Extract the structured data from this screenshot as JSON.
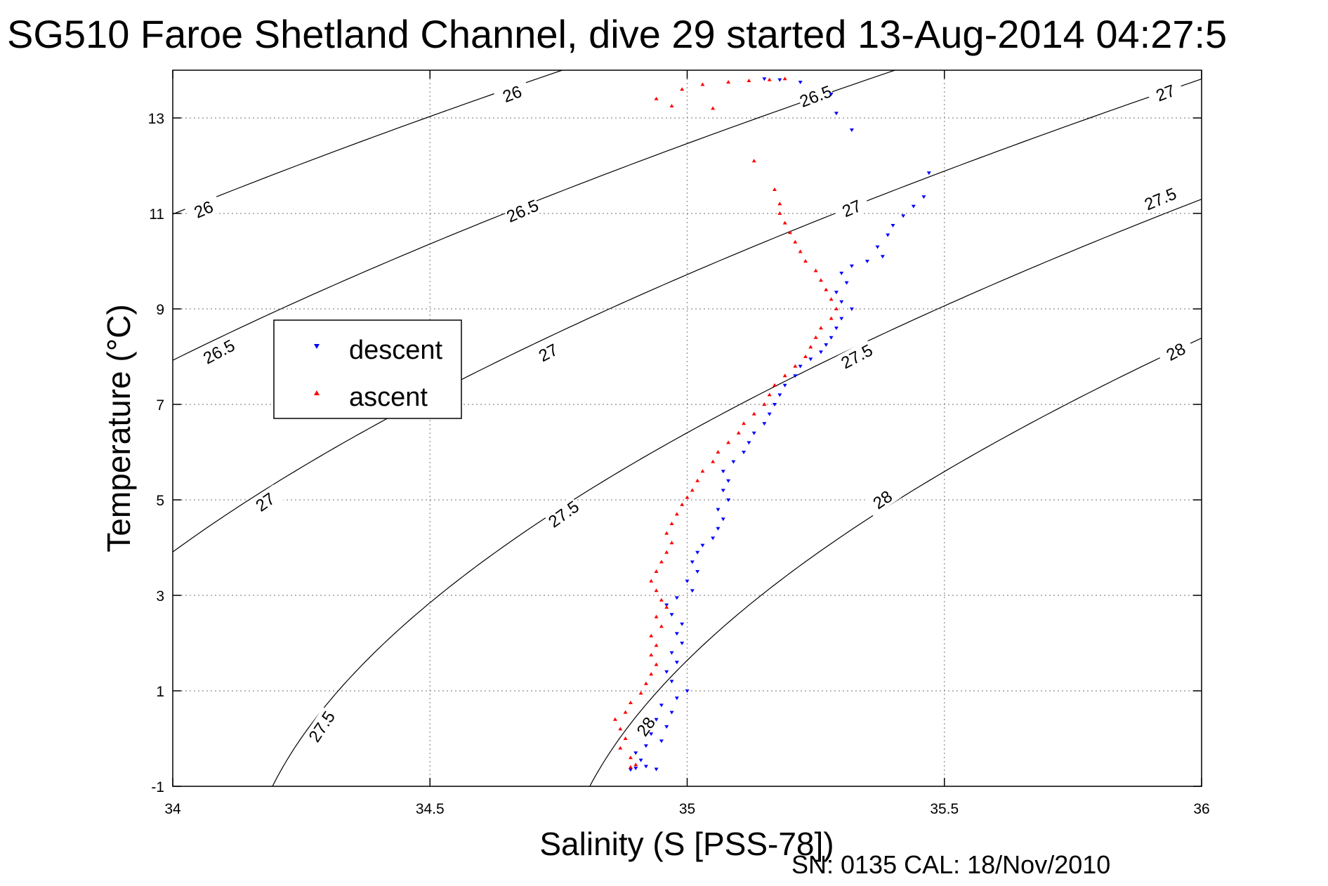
{
  "footer": "SN: 0135  CAL: 18/Nov/2010",
  "colors": {
    "descent": "#0000ff",
    "ascent": "#ff0000",
    "contour": "#000000",
    "grid": "#8c8c8c"
  },
  "chart_data": {
    "type": "scatter",
    "title": "SG510 Faroe Shetland Channel, dive 29 started 13-Aug-2014 04:27:5",
    "xlabel": "Salinity (S [PSS-78])",
    "ylabel": "Temperature (°C)",
    "xlim": [
      34,
      36
    ],
    "ylim": [
      -1,
      14
    ],
    "xticks": [
      "34",
      "34.5",
      "35",
      "35.5",
      "36"
    ],
    "yticks": [
      "-1",
      "1",
      "3",
      "5",
      "7",
      "9",
      "11",
      "13"
    ],
    "grid": true,
    "legend_position": "left",
    "legend": [
      {
        "label": "descent",
        "marker": "down-triangle",
        "color": "#0000ff"
      },
      {
        "label": "ascent",
        "marker": "up-triangle",
        "color": "#ff0000"
      }
    ],
    "contours": [
      {
        "level": 26.0,
        "label": "26",
        "labels_at": [
          [
            34.06,
            11.08
          ],
          [
            34.66,
            13.5
          ]
        ]
      },
      {
        "level": 26.5,
        "label": "26.5",
        "labels_at": [
          [
            34.09,
            8.1
          ],
          [
            34.68,
            11.05
          ],
          [
            35.25,
            13.45
          ]
        ]
      },
      {
        "level": 27.0,
        "label": "27",
        "labels_at": [
          [
            34.18,
            4.95
          ],
          [
            34.73,
            8.08
          ],
          [
            35.32,
            11.1
          ],
          [
            35.93,
            13.52
          ]
        ]
      },
      {
        "level": 27.5,
        "label": "27.5",
        "labels_at": [
          [
            34.29,
            0.25
          ],
          [
            34.76,
            4.7
          ],
          [
            35.33,
            8.0
          ],
          [
            35.92,
            11.3
          ]
        ]
      },
      {
        "level": 28.0,
        "label": "28",
        "labels_at": [
          [
            34.92,
            0.25
          ],
          [
            35.38,
            5.0
          ],
          [
            35.95,
            8.1
          ]
        ]
      }
    ],
    "series": [
      {
        "name": "descent",
        "points": [
          [
            34.89,
            -0.65
          ],
          [
            34.9,
            -0.62
          ],
          [
            34.92,
            -0.58
          ],
          [
            34.94,
            -0.64
          ],
          [
            34.91,
            -0.45
          ],
          [
            34.9,
            -0.3
          ],
          [
            34.92,
            -0.15
          ],
          [
            34.95,
            -0.05
          ],
          [
            34.93,
            0.1
          ],
          [
            34.96,
            0.25
          ],
          [
            34.94,
            0.4
          ],
          [
            34.97,
            0.55
          ],
          [
            34.95,
            0.7
          ],
          [
            34.98,
            0.85
          ],
          [
            35.0,
            1.0
          ],
          [
            34.97,
            1.2
          ],
          [
            34.96,
            1.4
          ],
          [
            34.98,
            1.6
          ],
          [
            34.97,
            1.8
          ],
          [
            34.99,
            2.0
          ],
          [
            34.98,
            2.2
          ],
          [
            34.99,
            2.4
          ],
          [
            34.97,
            2.6
          ],
          [
            34.96,
            2.8
          ],
          [
            34.98,
            2.95
          ],
          [
            35.01,
            3.1
          ],
          [
            35.0,
            3.3
          ],
          [
            35.02,
            3.5
          ],
          [
            35.01,
            3.7
          ],
          [
            35.02,
            3.9
          ],
          [
            35.03,
            4.05
          ],
          [
            35.05,
            4.2
          ],
          [
            35.06,
            4.4
          ],
          [
            35.07,
            4.6
          ],
          [
            35.06,
            4.8
          ],
          [
            35.08,
            5.0
          ],
          [
            35.07,
            5.2
          ],
          [
            35.08,
            5.4
          ],
          [
            35.07,
            5.6
          ],
          [
            35.09,
            5.8
          ],
          [
            35.11,
            6.0
          ],
          [
            35.12,
            6.2
          ],
          [
            35.13,
            6.4
          ],
          [
            35.15,
            6.6
          ],
          [
            35.16,
            6.8
          ],
          [
            35.17,
            7.0
          ],
          [
            35.18,
            7.2
          ],
          [
            35.19,
            7.4
          ],
          [
            35.21,
            7.6
          ],
          [
            35.22,
            7.8
          ],
          [
            35.24,
            7.95
          ],
          [
            35.26,
            8.1
          ],
          [
            35.27,
            8.25
          ],
          [
            35.28,
            8.4
          ],
          [
            35.29,
            8.6
          ],
          [
            35.3,
            8.8
          ],
          [
            35.32,
            9.0
          ],
          [
            35.3,
            9.15
          ],
          [
            35.29,
            9.35
          ],
          [
            35.31,
            9.55
          ],
          [
            35.3,
            9.75
          ],
          [
            35.32,
            9.9
          ],
          [
            35.35,
            10.0
          ],
          [
            35.38,
            10.1
          ],
          [
            35.37,
            10.3
          ],
          [
            35.39,
            10.55
          ],
          [
            35.4,
            10.75
          ],
          [
            35.42,
            10.95
          ],
          [
            35.44,
            11.15
          ],
          [
            35.46,
            11.35
          ],
          [
            35.47,
            11.85
          ],
          [
            35.32,
            12.75
          ],
          [
            35.29,
            13.1
          ],
          [
            35.28,
            13.5
          ],
          [
            35.22,
            13.75
          ],
          [
            35.18,
            13.8
          ],
          [
            35.15,
            13.82
          ]
        ]
      },
      {
        "name": "ascent",
        "points": [
          [
            34.89,
            -0.6
          ],
          [
            34.9,
            -0.55
          ],
          [
            34.89,
            -0.4
          ],
          [
            34.87,
            -0.2
          ],
          [
            34.88,
            0.0
          ],
          [
            34.87,
            0.2
          ],
          [
            34.86,
            0.4
          ],
          [
            34.88,
            0.55
          ],
          [
            34.89,
            0.75
          ],
          [
            34.91,
            0.95
          ],
          [
            34.92,
            1.15
          ],
          [
            34.93,
            1.35
          ],
          [
            34.94,
            1.55
          ],
          [
            34.93,
            1.75
          ],
          [
            34.94,
            1.95
          ],
          [
            34.93,
            2.15
          ],
          [
            34.95,
            2.35
          ],
          [
            34.94,
            2.55
          ],
          [
            34.96,
            2.75
          ],
          [
            34.95,
            2.9
          ],
          [
            34.94,
            3.1
          ],
          [
            34.93,
            3.3
          ],
          [
            34.94,
            3.5
          ],
          [
            34.95,
            3.7
          ],
          [
            34.96,
            3.9
          ],
          [
            34.97,
            4.1
          ],
          [
            34.96,
            4.3
          ],
          [
            34.97,
            4.5
          ],
          [
            34.98,
            4.7
          ],
          [
            34.99,
            4.9
          ],
          [
            35.0,
            5.05
          ],
          [
            35.01,
            5.2
          ],
          [
            35.02,
            5.4
          ],
          [
            35.03,
            5.6
          ],
          [
            35.05,
            5.8
          ],
          [
            35.06,
            6.0
          ],
          [
            35.08,
            6.2
          ],
          [
            35.1,
            6.4
          ],
          [
            35.11,
            6.6
          ],
          [
            35.13,
            6.8
          ],
          [
            35.15,
            7.0
          ],
          [
            35.16,
            7.2
          ],
          [
            35.17,
            7.4
          ],
          [
            35.19,
            7.6
          ],
          [
            35.21,
            7.8
          ],
          [
            35.23,
            8.0
          ],
          [
            35.24,
            8.2
          ],
          [
            35.25,
            8.4
          ],
          [
            35.26,
            8.6
          ],
          [
            35.28,
            8.8
          ],
          [
            35.29,
            9.0
          ],
          [
            35.28,
            9.2
          ],
          [
            35.27,
            9.4
          ],
          [
            35.26,
            9.6
          ],
          [
            35.25,
            9.8
          ],
          [
            35.23,
            10.0
          ],
          [
            35.22,
            10.2
          ],
          [
            35.21,
            10.4
          ],
          [
            35.2,
            10.6
          ],
          [
            35.19,
            10.8
          ],
          [
            35.18,
            11.0
          ],
          [
            35.18,
            11.2
          ],
          [
            35.17,
            11.5
          ],
          [
            35.13,
            12.1
          ],
          [
            35.05,
            13.2
          ],
          [
            34.97,
            13.25
          ],
          [
            34.94,
            13.4
          ],
          [
            34.99,
            13.6
          ],
          [
            35.03,
            13.7
          ],
          [
            35.08,
            13.75
          ],
          [
            35.12,
            13.78
          ],
          [
            35.16,
            13.8
          ],
          [
            35.19,
            13.82
          ]
        ]
      }
    ]
  }
}
